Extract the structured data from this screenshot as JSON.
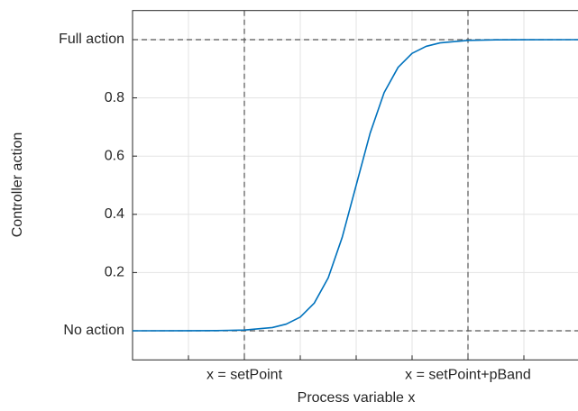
{
  "chart_data": {
    "type": "line",
    "x_label": "Process variable x",
    "y_label": "Controller action",
    "xlim": [
      0,
      8
    ],
    "ylim": [
      -0.1,
      1.1
    ],
    "xticks": [
      {
        "value": 1,
        "label": null
      },
      {
        "value": 2,
        "label": "x = setPoint"
      },
      {
        "value": 3,
        "label": null
      },
      {
        "value": 4,
        "label": null
      },
      {
        "value": 5,
        "label": null
      },
      {
        "value": 6,
        "label": "x = setPoint+pBand"
      },
      {
        "value": 7,
        "label": null
      }
    ],
    "yticks": [
      {
        "value": 0,
        "label": "No action"
      },
      0.2,
      0.4,
      0.6,
      0.8,
      {
        "value": 1,
        "label": "Full action"
      }
    ],
    "grid": true,
    "hlines": [
      0,
      1
    ],
    "vlines": [
      2,
      6
    ],
    "series": [
      {
        "color": "#0072bd",
        "x": [
          0,
          1,
          1.5,
          2,
          2.5,
          2.75,
          3,
          3.25,
          3.5,
          3.75,
          4,
          4.25,
          4.5,
          4.75,
          5,
          5.25,
          5.5,
          6,
          6.5,
          7,
          8
        ],
        "values": [
          0.0,
          0.0001,
          0.0006,
          0.0025,
          0.011,
          0.023,
          0.047,
          0.095,
          0.182,
          0.321,
          0.5,
          0.679,
          0.818,
          0.905,
          0.953,
          0.977,
          0.989,
          0.9975,
          0.9994,
          0.9999,
          1.0
        ]
      }
    ]
  }
}
